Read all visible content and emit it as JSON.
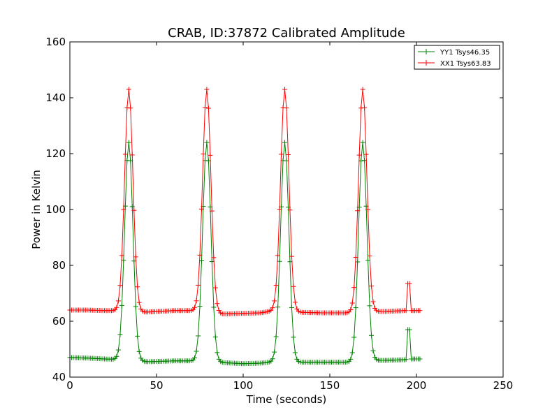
{
  "chart_data": {
    "type": "line",
    "title": "CRAB, ID:37872 Calibrated Amplitude",
    "xlabel": "Time (seconds)",
    "ylabel": "Power in Kelvin",
    "xlim": [
      0,
      250
    ],
    "ylim": [
      40,
      160
    ],
    "xticks": [
      0,
      50,
      100,
      150,
      200,
      250
    ],
    "yticks": [
      40,
      60,
      80,
      100,
      120,
      140,
      160
    ],
    "grid": false,
    "legend_position": "top-right",
    "series": [
      {
        "name": "YY1 Tsys46.35",
        "color": "#008000",
        "marker": "+",
        "baselines": [
          [
            0,
            47
          ],
          [
            10,
            46.8
          ],
          [
            20,
            46.5
          ],
          [
            28,
            46.3
          ],
          [
            38,
            45.8
          ],
          [
            45,
            45.5
          ],
          [
            60,
            45.8
          ],
          [
            75,
            45.8
          ],
          [
            82,
            45.5
          ],
          [
            88,
            45.2
          ],
          [
            100,
            44.8
          ],
          [
            110,
            45.0
          ],
          [
            118,
            45.5
          ],
          [
            126,
            45.3
          ],
          [
            133,
            45.3
          ],
          [
            145,
            45.3
          ],
          [
            160,
            45.3
          ],
          [
            165,
            45.3
          ],
          [
            173,
            46.0
          ],
          [
            182,
            46.0
          ],
          [
            193,
            46.2
          ],
          [
            194,
            46.3
          ],
          [
            195,
            57
          ],
          [
            196.5,
            57
          ],
          [
            197,
            46.5
          ],
          [
            202,
            46.5
          ]
        ],
        "peaks": [
          {
            "x": 34,
            "y": 124
          },
          {
            "x": 79,
            "y": 124
          },
          {
            "x": 124,
            "y": 124
          },
          {
            "x": 169,
            "y": 124
          }
        ]
      },
      {
        "name": "XX1 Tsys63.83",
        "color": "#ff0000",
        "marker": "+",
        "baselines": [
          [
            0,
            64
          ],
          [
            10,
            64
          ],
          [
            20,
            63.8
          ],
          [
            28,
            63.8
          ],
          [
            38,
            63.2
          ],
          [
            45,
            63.3
          ],
          [
            60,
            63.8
          ],
          [
            75,
            63.8
          ],
          [
            82,
            63.0
          ],
          [
            88,
            62.6
          ],
          [
            100,
            62.8
          ],
          [
            110,
            63.0
          ],
          [
            118,
            63.8
          ],
          [
            126,
            63.5
          ],
          [
            133,
            63.2
          ],
          [
            145,
            63.0
          ],
          [
            160,
            63.0
          ],
          [
            165,
            63.0
          ],
          [
            173,
            63.5
          ],
          [
            182,
            63.5
          ],
          [
            193,
            63.8
          ],
          [
            194,
            63.8
          ],
          [
            195,
            73.5
          ],
          [
            196.5,
            73.5
          ],
          [
            197,
            63.8
          ],
          [
            202,
            63.8
          ]
        ],
        "peaks": [
          {
            "x": 34,
            "y": 143
          },
          {
            "x": 79,
            "y": 143
          },
          {
            "x": 124,
            "y": 143
          },
          {
            "x": 169,
            "y": 143
          }
        ]
      }
    ]
  }
}
